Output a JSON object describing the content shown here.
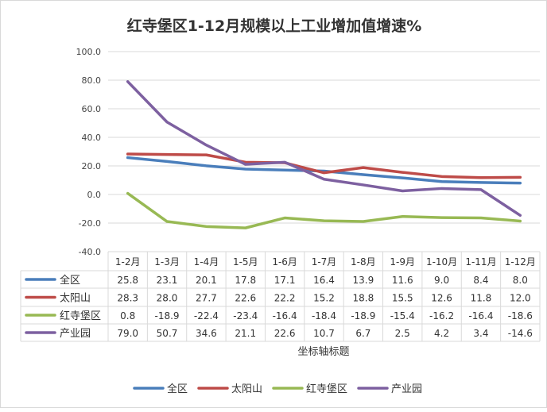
{
  "chart_data": {
    "type": "line",
    "title": "红寺堡区1-12月规模以上工业增加值增速%",
    "xlabel": "坐标轴标题",
    "ylabel": "",
    "ylim": [
      -40,
      100
    ],
    "yticks": [
      "100.0",
      "80.0",
      "60.0",
      "40.0",
      "20.0",
      "0.0",
      "-20.0",
      "-40.0"
    ],
    "ytick_values": [
      100,
      80,
      60,
      40,
      20,
      0,
      -20,
      -40
    ],
    "grid": true,
    "legend_placement": "bottom",
    "categories": [
      "1-2月",
      "1-3月",
      "1-4月",
      "1-5月",
      "1-6月",
      "1-7月",
      "1-8月",
      "1-9月",
      "1-10月",
      "1-11月",
      "1-12月"
    ],
    "series": [
      {
        "name": "全区",
        "color": "#4a7ebb",
        "values": [
          25.8,
          23.1,
          20.1,
          17.8,
          17.1,
          16.4,
          13.9,
          11.6,
          9.0,
          8.4,
          8.0
        ]
      },
      {
        "name": "太阳山",
        "color": "#be4b48",
        "values": [
          28.3,
          28.0,
          27.7,
          22.6,
          22.2,
          15.2,
          18.8,
          15.5,
          12.6,
          11.8,
          12.0
        ]
      },
      {
        "name": "红寺堡区",
        "color": "#98b954",
        "values": [
          0.8,
          -18.9,
          -22.4,
          -23.4,
          -16.4,
          -18.4,
          -18.9,
          -15.4,
          -16.2,
          -16.4,
          -18.6
        ]
      },
      {
        "name": "产业园",
        "color": "#7d60a0",
        "values": [
          79.0,
          50.7,
          34.6,
          21.1,
          22.6,
          10.7,
          6.7,
          2.5,
          4.2,
          3.4,
          -14.6
        ]
      }
    ]
  }
}
